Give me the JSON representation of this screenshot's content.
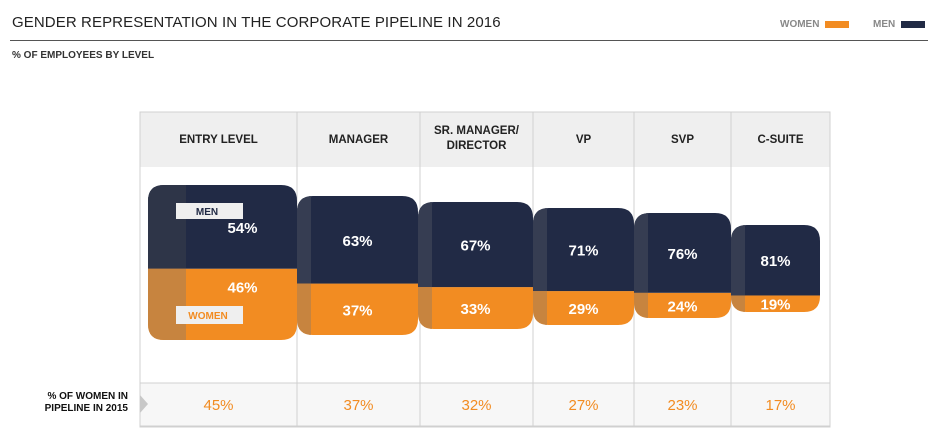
{
  "header": {
    "title": "GENDER REPRESENTATION IN THE CORPORATE PIPELINE IN 2016",
    "subtitle": "% OF EMPLOYEES BY LEVEL",
    "legend": [
      {
        "label": "WOMEN",
        "color": "#f28c22"
      },
      {
        "label": "MEN",
        "color": "#212a45"
      }
    ]
  },
  "chart_data": {
    "type": "bar",
    "stacked": true,
    "title": "GENDER REPRESENTATION IN THE CORPORATE PIPELINE IN 2016",
    "subtitle": "% OF EMPLOYEES BY LEVEL",
    "categories": [
      "ENTRY LEVEL",
      "MANAGER",
      "SR. MANAGER/ DIRECTOR",
      "VP",
      "SVP",
      "C-SUITE"
    ],
    "series": [
      {
        "name": "MEN",
        "color": "#212a45",
        "values": [
          54,
          63,
          67,
          71,
          76,
          81
        ],
        "labels": [
          "54%",
          "63%",
          "67%",
          "71%",
          "76%",
          "81%"
        ]
      },
      {
        "name": "WOMEN",
        "color": "#f28c22",
        "values": [
          46,
          37,
          33,
          29,
          24,
          19
        ],
        "labels": [
          "46%",
          "37%",
          "33%",
          "29%",
          "24%",
          "19%"
        ]
      }
    ],
    "bottom_row": {
      "label_line1": "% OF WOMEN IN",
      "label_line2": "PIPELINE IN 2015",
      "values": [
        45,
        37,
        32,
        27,
        23,
        17
      ],
      "labels": [
        "45%",
        "37%",
        "32%",
        "27%",
        "23%",
        "17%"
      ]
    },
    "in_chart_labels": {
      "men": "MEN",
      "women": "WOMEN"
    }
  }
}
